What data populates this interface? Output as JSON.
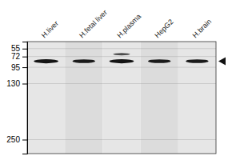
{
  "chart_data": {
    "type": "blot",
    "categories": [
      "H.liver",
      "H.fetal liver",
      "H.plasma",
      "HepG2",
      "H.brain"
    ],
    "bands": [
      {
        "category": "H.liver",
        "value": 82,
        "height": 9,
        "width": 0.13,
        "intensity": 0.08
      },
      {
        "category": "H.fetal liver",
        "value": 82,
        "height": 8,
        "width": 0.12,
        "intensity": 0.1
      },
      {
        "category": "H.plasma",
        "value": 82,
        "height": 9,
        "width": 0.13,
        "intensity": 0.08
      },
      {
        "category": "H.plasma",
        "value": 67,
        "height": 5,
        "width": 0.09,
        "intensity": 0.3
      },
      {
        "category": "HepG2",
        "value": 82,
        "height": 8,
        "width": 0.12,
        "intensity": 0.1
      },
      {
        "category": "H.brain",
        "value": 82,
        "height": 8,
        "width": 0.12,
        "intensity": 0.1
      }
    ],
    "ylim": [
      280,
      40
    ],
    "yticks": [
      250,
      130,
      95,
      72,
      55
    ],
    "grid": true,
    "arrow": 82
  }
}
